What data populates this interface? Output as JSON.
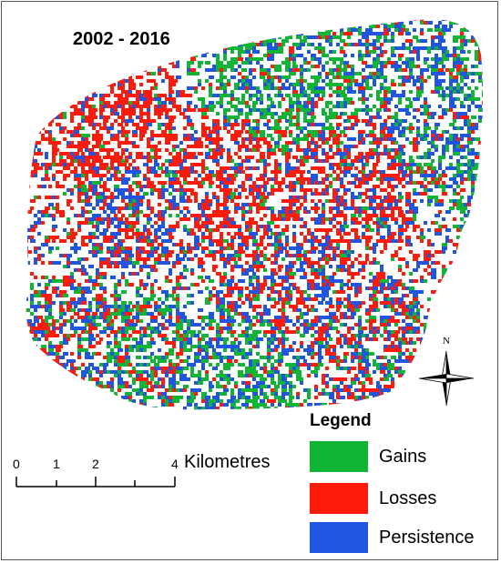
{
  "map": {
    "title": "2002 - 2016",
    "colors": {
      "gains": "#11b536",
      "losses": "#ff1a0a",
      "persistence": "#1f55e0"
    }
  },
  "legend": {
    "title": "Legend",
    "items": [
      {
        "label": "Gains",
        "color": "#11b536"
      },
      {
        "label": "Losses",
        "color": "#ff1a0a"
      },
      {
        "label": "Persistence",
        "color": "#1f55e0"
      }
    ]
  },
  "scale_bar": {
    "ticks": [
      "0",
      "1",
      "2",
      "4"
    ],
    "unit": "Kilometres"
  },
  "north_arrow": {
    "label": "N"
  }
}
